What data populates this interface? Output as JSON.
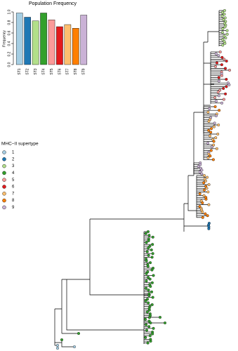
{
  "chart_data": {
    "type": "bar",
    "title": "Population Frequency",
    "y_label": "Frequency",
    "categories": [
      "ST1",
      "ST2",
      "ST3",
      "ST4",
      "ST5",
      "ST6",
      "ST7",
      "ST8",
      "ST9"
    ],
    "values": [
      0.98,
      0.9,
      0.83,
      0.98,
      0.85,
      0.72,
      0.76,
      0.69,
      0.94
    ],
    "colors": [
      "#a6cee3",
      "#1f78b4",
      "#b2df8a",
      "#33a02c",
      "#fb9a99",
      "#e31a1c",
      "#fdbf6f",
      "#ff7f00",
      "#cab2d6"
    ],
    "ylim": [
      0,
      1
    ],
    "yticks": [
      {
        "value": 0,
        "label": "0.0"
      },
      0.2,
      0.4,
      0.6,
      0.8,
      {
        "value": 1,
        "label": "1.0"
      }
    ]
  },
  "legend": {
    "title": "MHC−II supertype",
    "items": [
      {
        "label": "1",
        "color": "#a6cee3"
      },
      {
        "label": "2",
        "color": "#1f78b4"
      },
      {
        "label": "3",
        "color": "#b2df8a"
      },
      {
        "label": "4",
        "color": "#33a02c"
      },
      {
        "label": "5",
        "color": "#fb9a99"
      },
      {
        "label": "6",
        "color": "#e31a1c"
      },
      {
        "label": "7",
        "color": "#fdbf6f"
      },
      {
        "label": "8",
        "color": "#ff7f00"
      },
      {
        "label": "9",
        "color": "#cab2d6"
      }
    ]
  }
}
